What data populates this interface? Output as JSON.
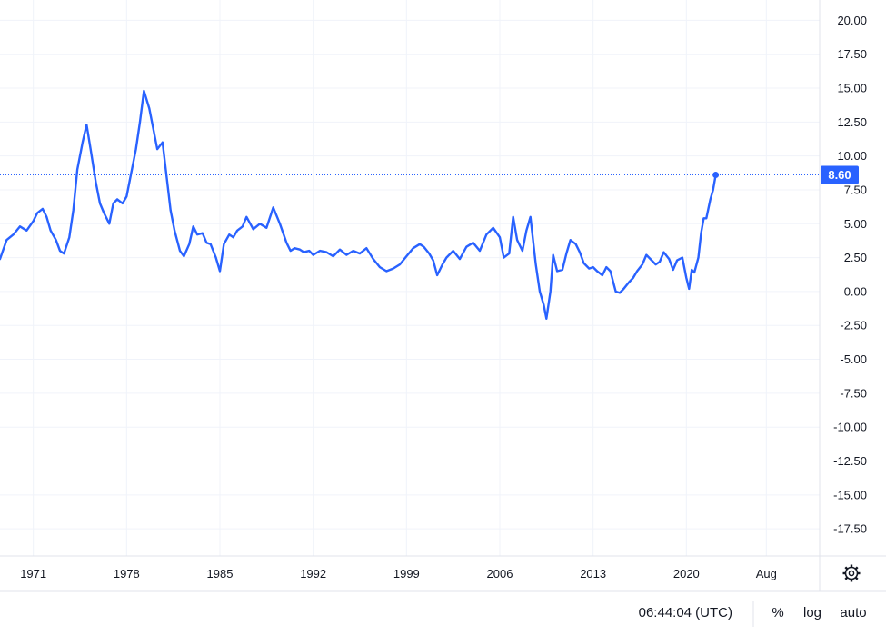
{
  "chart_data": {
    "type": "line",
    "title": "",
    "xlabel": "",
    "ylabel": "",
    "ylim": [
      -19.5,
      21.5
    ],
    "y_ticks": [
      20,
      17.5,
      15,
      12.5,
      10,
      7.5,
      5,
      2.5,
      0,
      -2.5,
      -5,
      -7.5,
      -10,
      -12.5,
      -15,
      -17.5
    ],
    "y_tick_labels": [
      "20.00",
      "17.50",
      "15.00",
      "12.50",
      "10.00",
      "7.50",
      "5.00",
      "2.50",
      "0.00",
      "-2.50",
      "-5.00",
      "-7.50",
      "-10.00",
      "-12.50",
      "-15.00",
      "-17.50"
    ],
    "x_tick_labels": [
      "1971",
      "1978",
      "1985",
      "1992",
      "1999",
      "2006",
      "2013",
      "2020",
      "Aug"
    ],
    "x_tick_values": [
      1971,
      1978,
      1985,
      1992,
      1999,
      2006,
      2013,
      2020,
      2026
    ],
    "xlim": [
      1968.5,
      2030
    ],
    "grid": true,
    "line_color": "#2962ff",
    "last_value": 8.6,
    "last_value_label": "8.60",
    "series": [
      {
        "x": [
          1968.5,
          1969.0,
          1969.5,
          1970.0,
          1970.5,
          1971.0,
          1971.3,
          1971.7,
          1972.0,
          1972.3,
          1972.7,
          1973.0,
          1973.3,
          1973.7,
          1974.0,
          1974.3,
          1974.7,
          1975.0,
          1975.3,
          1975.7,
          1976.0,
          1976.3,
          1976.7,
          1977.0,
          1977.3,
          1977.7,
          1978.0,
          1978.3,
          1978.7,
          1979.0,
          1979.3,
          1979.7,
          1980.0,
          1980.3,
          1980.7,
          1981.0,
          1981.3,
          1981.6,
          1982.0,
          1982.3,
          1982.7,
          1983.0,
          1983.3,
          1983.7,
          1984.0,
          1984.3,
          1984.7,
          1985.0,
          1985.3,
          1985.7,
          1986.0,
          1986.3,
          1986.7,
          1987.0,
          1987.5,
          1988.0,
          1988.5,
          1989.0,
          1989.5,
          1990.0,
          1990.3,
          1990.6,
          1991.0,
          1991.3,
          1991.7,
          1992.0,
          1992.5,
          1993.0,
          1993.5,
          1994.0,
          1994.5,
          1995.0,
          1995.5,
          1996.0,
          1996.5,
          1997.0,
          1997.5,
          1998.0,
          1998.5,
          1999.0,
          1999.5,
          2000.0,
          2000.3,
          2000.7,
          2001.0,
          2001.3,
          2001.7,
          2002.0,
          2002.5,
          2003.0,
          2003.5,
          2004.0,
          2004.5,
          2005.0,
          2005.5,
          2006.0,
          2006.3,
          2006.7,
          2007.0,
          2007.3,
          2007.7,
          2008.0,
          2008.3,
          2008.7,
          2009.0,
          2009.3,
          2009.5,
          2009.8,
          2010.0,
          2010.3,
          2010.7,
          2011.0,
          2011.3,
          2011.7,
          2012.0,
          2012.3,
          2012.7,
          2013.0,
          2013.3,
          2013.7,
          2014.0,
          2014.3,
          2014.7,
          2015.0,
          2015.3,
          2015.7,
          2016.0,
          2016.3,
          2016.7,
          2017.0,
          2017.3,
          2017.7,
          2018.0,
          2018.3,
          2018.7,
          2019.0,
          2019.3,
          2019.7,
          2020.0,
          2020.2,
          2020.4,
          2020.6,
          2020.9,
          2021.1,
          2021.3,
          2021.5,
          2021.8,
          2022.0,
          2022.2
        ],
        "values": [
          2.4,
          3.8,
          4.2,
          4.8,
          4.5,
          5.2,
          5.8,
          6.1,
          5.5,
          4.5,
          3.8,
          3.0,
          2.8,
          4.0,
          6.0,
          9.0,
          11.0,
          12.3,
          10.5,
          8.0,
          6.5,
          5.8,
          5.0,
          6.5,
          6.8,
          6.5,
          7.0,
          8.5,
          10.5,
          12.5,
          14.8,
          13.5,
          12.0,
          10.5,
          11.0,
          8.5,
          6.0,
          4.5,
          3.0,
          2.6,
          3.5,
          4.8,
          4.2,
          4.3,
          3.6,
          3.5,
          2.5,
          1.5,
          3.5,
          4.2,
          4.0,
          4.5,
          4.8,
          5.5,
          4.6,
          5.0,
          4.7,
          6.2,
          5.0,
          3.6,
          3.0,
          3.2,
          3.1,
          2.9,
          3.0,
          2.7,
          3.0,
          2.9,
          2.6,
          3.1,
          2.7,
          3.0,
          2.8,
          3.2,
          2.4,
          1.8,
          1.5,
          1.7,
          2.0,
          2.6,
          3.2,
          3.5,
          3.3,
          2.8,
          2.3,
          1.2,
          2.0,
          2.5,
          3.0,
          2.4,
          3.3,
          3.6,
          3.0,
          4.2,
          4.7,
          4.0,
          2.5,
          2.8,
          5.5,
          3.8,
          3.0,
          4.5,
          5.5,
          2.0,
          0.0,
          -1.0,
          -2.0,
          0.0,
          2.7,
          1.5,
          1.6,
          2.8,
          3.8,
          3.5,
          2.9,
          2.1,
          1.7,
          1.8,
          1.5,
          1.2,
          1.8,
          1.5,
          0.0,
          -0.1,
          0.2,
          0.7,
          1.0,
          1.5,
          2.0,
          2.7,
          2.4,
          2.0,
          2.2,
          2.9,
          2.4,
          1.6,
          2.3,
          2.5,
          1.0,
          0.2,
          1.6,
          1.4,
          2.5,
          4.3,
          5.4,
          5.4,
          6.8,
          7.5,
          8.6
        ]
      }
    ]
  },
  "footer": {
    "time": "06:44:04 (UTC)",
    "percent_label": "%",
    "log_label": "log",
    "auto_label": "auto"
  },
  "icons": {
    "settings": "gear-icon"
  }
}
